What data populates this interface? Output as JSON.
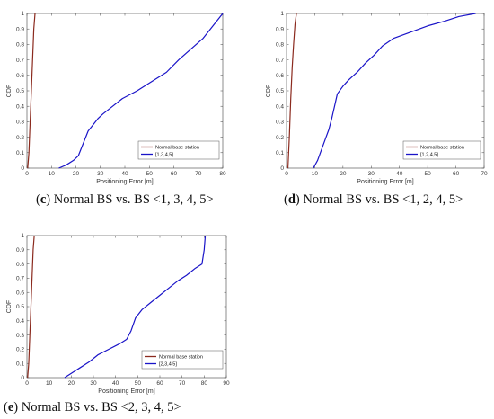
{
  "chart_data": [
    {
      "type": "line",
      "panel": "c",
      "xlabel": "Positioning Error [m]",
      "ylabel": "CDF",
      "xlim": [
        0,
        80
      ],
      "ylim": [
        0,
        1
      ],
      "xticks": [
        0,
        10,
        20,
        30,
        40,
        50,
        60,
        70,
        80
      ],
      "yticks": [
        0,
        0.1,
        0.2,
        0.3,
        0.4,
        0.5,
        0.6,
        0.7,
        0.8,
        0.9,
        1
      ],
      "legend_position": "bottom-right",
      "caption": {
        "label": "c",
        "text": " Normal BS vs. BS <1, 3, 4, 5>"
      },
      "series": [
        {
          "name": "Normal base station",
          "color": "#8b2a1e",
          "x": [
            0.3,
            0.8,
            1.3,
            1.8,
            2.3,
            2.8,
            3.3
          ],
          "y": [
            0,
            0.1,
            0.3,
            0.5,
            0.7,
            0.9,
            1.0
          ]
        },
        {
          "name": "[1,3,4,5]",
          "color": "#1a14c8",
          "x": [
            13,
            16,
            19,
            21,
            22,
            23,
            24,
            25,
            27,
            29,
            31,
            35,
            39,
            45,
            50,
            57,
            62,
            67,
            72,
            76,
            80
          ],
          "y": [
            0,
            0.02,
            0.05,
            0.08,
            0.12,
            0.16,
            0.2,
            0.24,
            0.28,
            0.32,
            0.35,
            0.4,
            0.45,
            0.5,
            0.55,
            0.62,
            0.7,
            0.77,
            0.84,
            0.92,
            1.0
          ]
        }
      ]
    },
    {
      "type": "line",
      "panel": "d",
      "xlabel": "Positioning Error [m]",
      "ylabel": "CDF",
      "xlim": [
        0,
        70
      ],
      "ylim": [
        0,
        1
      ],
      "xticks": [
        0,
        10,
        20,
        30,
        40,
        50,
        60,
        70
      ],
      "yticks": [
        0,
        0.1,
        0.2,
        0.3,
        0.4,
        0.5,
        0.6,
        0.7,
        0.8,
        0.9,
        1
      ],
      "legend_position": "bottom-right",
      "caption": {
        "label": "d",
        "text": " Normal BS vs. BS <1, 2, 4, 5>"
      },
      "series": [
        {
          "name": "Normal base station",
          "color": "#8b2a1e",
          "x": [
            0.5,
            1.0,
            1.5,
            2.0,
            2.5,
            3.0,
            3.5
          ],
          "y": [
            0,
            0.2,
            0.45,
            0.65,
            0.8,
            0.93,
            1.0
          ]
        },
        {
          "name": "[1,2,4,5]",
          "color": "#1a14c8",
          "x": [
            9.5,
            11,
            12,
            13,
            14,
            15,
            16,
            17,
            18,
            20,
            22,
            25,
            28,
            31,
            34,
            38,
            44,
            50,
            56,
            61,
            67
          ],
          "y": [
            0,
            0.05,
            0.1,
            0.15,
            0.2,
            0.25,
            0.32,
            0.4,
            0.48,
            0.53,
            0.57,
            0.62,
            0.68,
            0.73,
            0.79,
            0.84,
            0.88,
            0.92,
            0.95,
            0.98,
            1.0
          ]
        }
      ]
    },
    {
      "type": "line",
      "panel": "e",
      "xlabel": "Positioning Error [m]",
      "ylabel": "CDF",
      "xlim": [
        0,
        90
      ],
      "ylim": [
        0,
        1
      ],
      "xticks": [
        0,
        10,
        20,
        30,
        40,
        50,
        60,
        70,
        80,
        90
      ],
      "yticks": [
        0,
        0.1,
        0.2,
        0.3,
        0.4,
        0.5,
        0.6,
        0.7,
        0.8,
        0.9,
        1
      ],
      "legend_position": "bottom-right",
      "caption": {
        "label": "e",
        "text": " Normal BS vs. BS <2, 3, 4, 5>"
      },
      "series": [
        {
          "name": "Normal base station",
          "color": "#8b2a1e",
          "x": [
            0.3,
            0.8,
            1.3,
            1.8,
            2.3,
            2.8,
            3.3
          ],
          "y": [
            0,
            0.1,
            0.3,
            0.5,
            0.7,
            0.9,
            1.0
          ]
        },
        {
          "name": "[2,3,4,5]",
          "color": "#1a14c8",
          "x": [
            17,
            20,
            24,
            28,
            32,
            37,
            42,
            45,
            47,
            49,
            52,
            56,
            60,
            64,
            68,
            72,
            76,
            79,
            80,
            80.5
          ],
          "y": [
            0,
            0.03,
            0.07,
            0.11,
            0.16,
            0.2,
            0.24,
            0.27,
            0.33,
            0.42,
            0.48,
            0.53,
            0.58,
            0.63,
            0.68,
            0.72,
            0.77,
            0.8,
            0.9,
            1.0
          ]
        }
      ]
    }
  ]
}
